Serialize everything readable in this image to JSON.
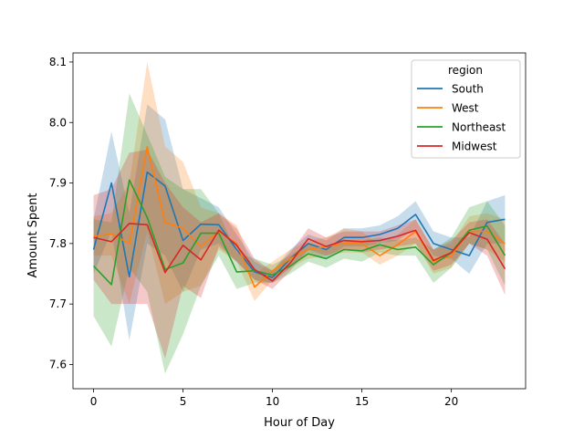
{
  "chart_data": {
    "type": "line",
    "title": "",
    "xlabel": "Hour of Day",
    "ylabel": "Amount Spent",
    "xlim": [
      -1.15,
      24.15
    ],
    "ylim": [
      7.56,
      8.115
    ],
    "xticks": [
      0,
      5,
      10,
      15,
      20
    ],
    "yticks": [
      7.6,
      7.7,
      7.8,
      7.9,
      8.0,
      8.1
    ],
    "ytick_labels": [
      "7.6",
      "7.7",
      "7.8",
      "7.9",
      "8.0",
      "8.1"
    ],
    "grid": false,
    "legend": {
      "title": "region",
      "placement": "top-right"
    },
    "x": [
      0,
      1,
      2,
      3,
      4,
      5,
      6,
      7,
      8,
      9,
      10,
      11,
      12,
      13,
      14,
      15,
      16,
      17,
      18,
      19,
      20,
      21,
      22,
      23
    ],
    "series": [
      {
        "name": "South",
        "color": "#1f77b4",
        "values": [
          7.79,
          7.9,
          7.745,
          7.918,
          7.895,
          7.805,
          7.832,
          7.831,
          7.79,
          7.753,
          7.744,
          7.775,
          7.8,
          7.79,
          7.81,
          7.81,
          7.815,
          7.825,
          7.848,
          7.8,
          7.79,
          7.78,
          7.835,
          7.84
        ],
        "lower": [
          7.75,
          7.82,
          7.64,
          7.8,
          7.78,
          7.72,
          7.79,
          7.8,
          7.77,
          7.74,
          7.735,
          7.76,
          7.785,
          7.775,
          7.795,
          7.795,
          7.8,
          7.805,
          7.825,
          7.78,
          7.775,
          7.75,
          7.8,
          7.8
        ],
        "upper": [
          7.84,
          7.985,
          7.85,
          8.03,
          8.005,
          7.89,
          7.875,
          7.86,
          7.815,
          7.77,
          7.755,
          7.79,
          7.815,
          7.805,
          7.825,
          7.825,
          7.83,
          7.845,
          7.87,
          7.82,
          7.81,
          7.81,
          7.87,
          7.88
        ]
      },
      {
        "name": "West",
        "color": "#ff7f0e",
        "values": [
          7.812,
          7.816,
          7.8,
          7.96,
          7.835,
          7.825,
          7.795,
          7.82,
          7.8,
          7.728,
          7.755,
          7.775,
          7.79,
          7.795,
          7.8,
          7.8,
          7.78,
          7.798,
          7.82,
          7.77,
          7.78,
          7.82,
          7.82,
          7.8
        ],
        "lower": [
          7.78,
          7.78,
          7.7,
          7.82,
          7.7,
          7.72,
          7.73,
          7.79,
          7.77,
          7.705,
          7.74,
          7.76,
          7.775,
          7.78,
          7.785,
          7.785,
          7.765,
          7.78,
          7.8,
          7.75,
          7.76,
          7.8,
          7.79,
          7.77
        ],
        "upper": [
          7.845,
          7.85,
          7.9,
          8.1,
          7.96,
          7.935,
          7.86,
          7.85,
          7.83,
          7.75,
          7.77,
          7.79,
          7.805,
          7.81,
          7.825,
          7.82,
          7.795,
          7.815,
          7.84,
          7.79,
          7.8,
          7.845,
          7.85,
          7.84
        ]
      },
      {
        "name": "Northeast",
        "color": "#2ca02c",
        "values": [
          7.763,
          7.732,
          7.905,
          7.843,
          7.757,
          7.768,
          7.817,
          7.817,
          7.753,
          7.755,
          7.748,
          7.763,
          7.783,
          7.775,
          7.79,
          7.788,
          7.798,
          7.79,
          7.794,
          7.765,
          7.785,
          7.822,
          7.829,
          7.78
        ],
        "lower": [
          7.68,
          7.63,
          7.76,
          7.72,
          7.585,
          7.65,
          7.73,
          7.78,
          7.725,
          7.735,
          7.735,
          7.75,
          7.77,
          7.76,
          7.775,
          7.77,
          7.785,
          7.78,
          7.78,
          7.735,
          7.76,
          7.8,
          7.79,
          7.73
        ],
        "upper": [
          7.84,
          7.835,
          8.048,
          7.98,
          7.91,
          7.89,
          7.89,
          7.85,
          7.785,
          7.775,
          7.765,
          7.78,
          7.8,
          7.79,
          7.805,
          7.805,
          7.81,
          7.805,
          7.81,
          7.79,
          7.81,
          7.86,
          7.87,
          7.83
        ]
      },
      {
        "name": "Midwest",
        "color": "#d62728",
        "values": [
          7.81,
          7.803,
          7.833,
          7.831,
          7.752,
          7.797,
          7.773,
          7.822,
          7.797,
          7.757,
          7.738,
          7.768,
          7.808,
          7.795,
          7.805,
          7.803,
          7.805,
          7.812,
          7.822,
          7.772,
          7.785,
          7.818,
          7.807,
          7.758
        ],
        "lower": [
          7.74,
          7.7,
          7.7,
          7.7,
          7.61,
          7.73,
          7.71,
          7.795,
          7.77,
          7.74,
          7.725,
          7.755,
          7.79,
          7.78,
          7.79,
          7.785,
          7.79,
          7.795,
          7.8,
          7.755,
          7.765,
          7.8,
          7.78,
          7.715
        ],
        "upper": [
          7.88,
          7.89,
          7.95,
          7.955,
          7.9,
          7.86,
          7.835,
          7.85,
          7.825,
          7.775,
          7.755,
          7.785,
          7.825,
          7.81,
          7.82,
          7.82,
          7.82,
          7.83,
          7.84,
          7.79,
          7.805,
          7.835,
          7.84,
          7.8
        ]
      }
    ]
  }
}
